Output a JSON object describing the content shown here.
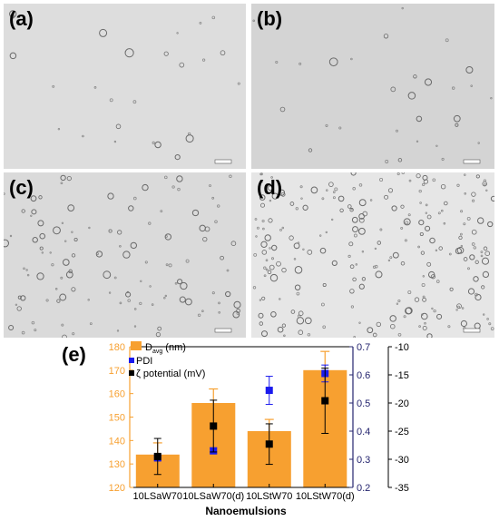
{
  "panels": [
    {
      "label": "(a)",
      "bg": "#dddddd",
      "particles": 26,
      "seed": 11,
      "rmax": 4.2
    },
    {
      "label": "(b)",
      "bg": "#d4d4d4",
      "particles": 30,
      "seed": 23,
      "rmax": 3.8
    },
    {
      "label": "(c)",
      "bg": "#dadada",
      "particles": 120,
      "seed": 37,
      "rmax": 3.2
    },
    {
      "label": "(d)",
      "bg": "#e6e6e6",
      "particles": 240,
      "seed": 51,
      "rmax": 3.0
    }
  ],
  "chart_label": "(e)",
  "chart_data": {
    "type": "bar",
    "categories": [
      "10LSaW70",
      "10LSaW70(d)",
      "10LStW70",
      "10LStW70(d)"
    ],
    "xlabel": "Nanoemulsions",
    "legend_position": "top-left",
    "legend": [
      "D<sub>avg</sub> (nm)",
      "PDI",
      "ζ potential (mV)"
    ],
    "legend_text": {
      "davg_main": "D",
      "davg_sub": "avg",
      "davg_unit": " (nm)",
      "pdi": "PDI",
      "zeta": "ζ potential (mV)"
    },
    "series": [
      {
        "name": "D avg (nm)",
        "kind": "bar",
        "axis": "left",
        "color": "#f7a030",
        "values": [
          134,
          156,
          144,
          170
        ],
        "errors": [
          5,
          6,
          5,
          8
        ]
      },
      {
        "name": "PDI",
        "kind": "point",
        "axis": "right_pdi",
        "color": "#1a1aee",
        "values": [
          0.305,
          0.33,
          0.545,
          0.605
        ],
        "errors": [
          0.01,
          0.01,
          0.05,
          0.03
        ]
      },
      {
        "name": "ζ potential (mV)",
        "kind": "point",
        "axis": "right_zeta",
        "color": "#000000",
        "values": [
          -29.5,
          -24.1,
          -27.3,
          -19.6
        ],
        "errors": [
          3.2,
          4.6,
          3.6,
          5.8
        ]
      }
    ],
    "left_axis": {
      "min": 120,
      "max": 180,
      "ticks": [
        120,
        130,
        140,
        150,
        160,
        170,
        180
      ],
      "color": "#f7a030"
    },
    "right_pdi_axis": {
      "min": 0.2,
      "max": 0.7,
      "ticks": [
        "0.2",
        "0.3",
        "0.4",
        "0.5",
        "0.6",
        "0.7"
      ],
      "color": "#24246e"
    },
    "right_zeta_axis": {
      "min": -35,
      "max": -10,
      "ticks": [
        -35,
        -30,
        -25,
        -20,
        -15,
        -10
      ],
      "color": "#000000"
    }
  }
}
